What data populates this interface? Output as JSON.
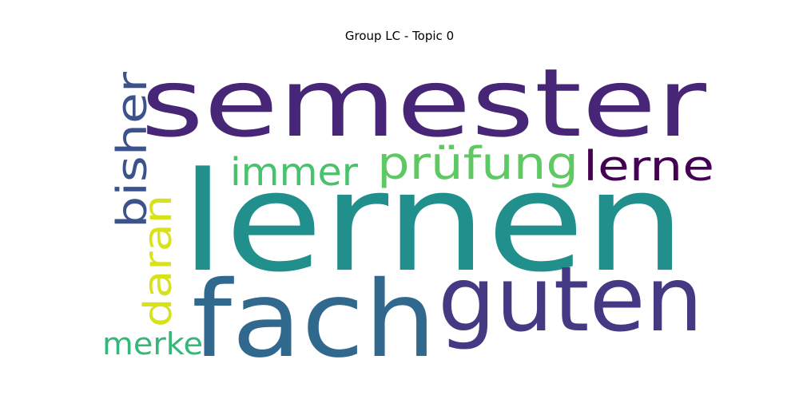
{
  "chart_data": {
    "type": "wordcloud",
    "title": "Group LC - Topic 0",
    "words": [
      {
        "text": "semester",
        "color": "#482677"
      },
      {
        "text": "lernen",
        "color": "#21908C"
      },
      {
        "text": "fach",
        "color": "#31688E"
      },
      {
        "text": "guten",
        "color": "#443A83"
      },
      {
        "text": "prüfung",
        "color": "#5EC962"
      },
      {
        "text": "immer",
        "color": "#4AC16D"
      },
      {
        "text": "lerne",
        "color": "#440154"
      },
      {
        "text": "bisher",
        "color": "#3B528B"
      },
      {
        "text": "daran",
        "color": "#D8E219"
      },
      {
        "text": "merke",
        "color": "#35B779"
      }
    ]
  }
}
